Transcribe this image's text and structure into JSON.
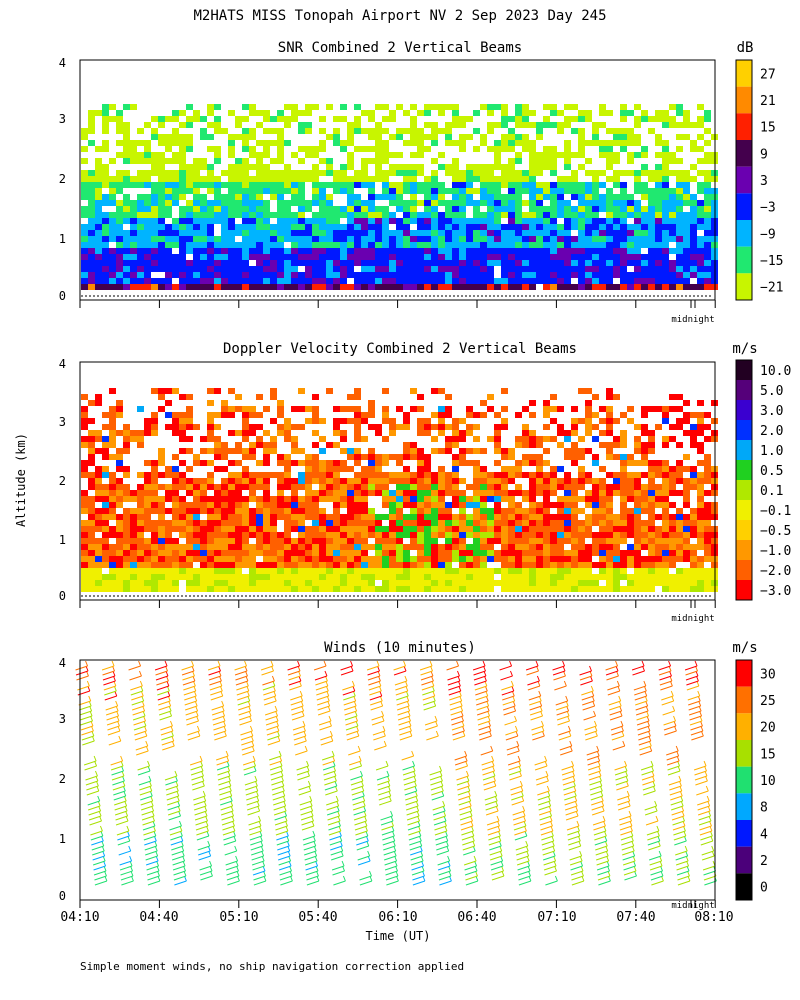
{
  "title": "M2HATS MISS Tonopah Airport NV   2 Sep 2023 Day 245",
  "y_axis_label": "Altitude (km)",
  "x_axis_label": "Time (UT)",
  "footer": "Simple moment winds, no ship navigation correction applied",
  "midnight_label": "midnight",
  "chart_data": [
    {
      "type": "heatmap",
      "id": "snr",
      "title": "SNR Combined 2 Vertical Beams",
      "ylabel": "Altitude (km)",
      "ylim": [
        0,
        4
      ],
      "yticks": [
        "0",
        "1",
        "2",
        "3",
        "4"
      ],
      "x_range": [
        "04:10",
        "08:10"
      ],
      "colorbar_unit": "dB",
      "colorbar_labels": [
        "27",
        "21",
        "15",
        "9",
        "3",
        "−3",
        "−9",
        "−15",
        "−21"
      ],
      "colors": [
        "#ffd000",
        "#ff8a00",
        "#ff2000",
        "#44004d",
        "#6a00b0",
        "#0018ff",
        "#00b4ff",
        "#20e870",
        "#c8f500"
      ],
      "profile_km": [
        {
          "top": 0.3,
          "level": 3
        },
        {
          "top": 0.9,
          "level": 5
        },
        {
          "top": 1.4,
          "level": 6
        },
        {
          "top": 2.0,
          "level": 7
        },
        {
          "top": 3.3,
          "level": 8
        }
      ]
    },
    {
      "type": "heatmap",
      "id": "doppler",
      "title": "Doppler Velocity Combined 2 Vertical Beams",
      "ylabel": "Altitude (km)",
      "ylim": [
        0,
        4
      ],
      "yticks": [
        "0",
        "1",
        "2",
        "3",
        "4"
      ],
      "x_range": [
        "04:10",
        "08:10"
      ],
      "colorbar_unit": "m/s",
      "colorbar_labels": [
        "10.0",
        "5.0",
        "3.0",
        "2.0",
        "1.0",
        "0.5",
        "0.1",
        "−0.1",
        "−0.5",
        "−1.0",
        "−2.0",
        "−3.0"
      ],
      "colors": [
        "#220022",
        "#55007a",
        "#3a00d0",
        "#0030ff",
        "#00a8f8",
        "#20d020",
        "#b0e800",
        "#f0f000",
        "#ffd000",
        "#ff9800",
        "#ff6000",
        "#ff0000"
      ],
      "profile_km": [
        {
          "top": 0.5,
          "level": 7
        },
        {
          "top": 2.2,
          "level": 10
        },
        {
          "top": 3.6,
          "level": 10
        }
      ]
    },
    {
      "type": "scatter",
      "id": "winds",
      "title": "Winds (10 minutes)",
      "ylabel": "Altitude (km)",
      "ylim": [
        0,
        4
      ],
      "yticks": [
        "0",
        "1",
        "2",
        "3",
        "4"
      ],
      "xlabel": "Time (UT)",
      "xticks": [
        "04:10",
        "04:40",
        "05:10",
        "05:40",
        "06:10",
        "06:40",
        "07:10",
        "07:40",
        "08:10"
      ],
      "colorbar_unit": "m/s",
      "colorbar_labels": [
        "30",
        "25",
        "20",
        "15",
        "10",
        "8",
        "4",
        "2",
        "0"
      ],
      "colors": [
        "#ff0000",
        "#ff7000",
        "#ffb000",
        "#a8e000",
        "#20e070",
        "#00a8ff",
        "#0018ff",
        "#4b007a",
        "#000000"
      ],
      "wind_profiles_per_10min": 24,
      "representative_speed_ms": [
        {
          "top": 1.0,
          "speed": 12
        },
        {
          "top": 2.2,
          "speed": 17
        },
        {
          "top": 3.5,
          "speed": 22
        },
        {
          "top": 4.0,
          "speed": 26
        }
      ]
    }
  ]
}
